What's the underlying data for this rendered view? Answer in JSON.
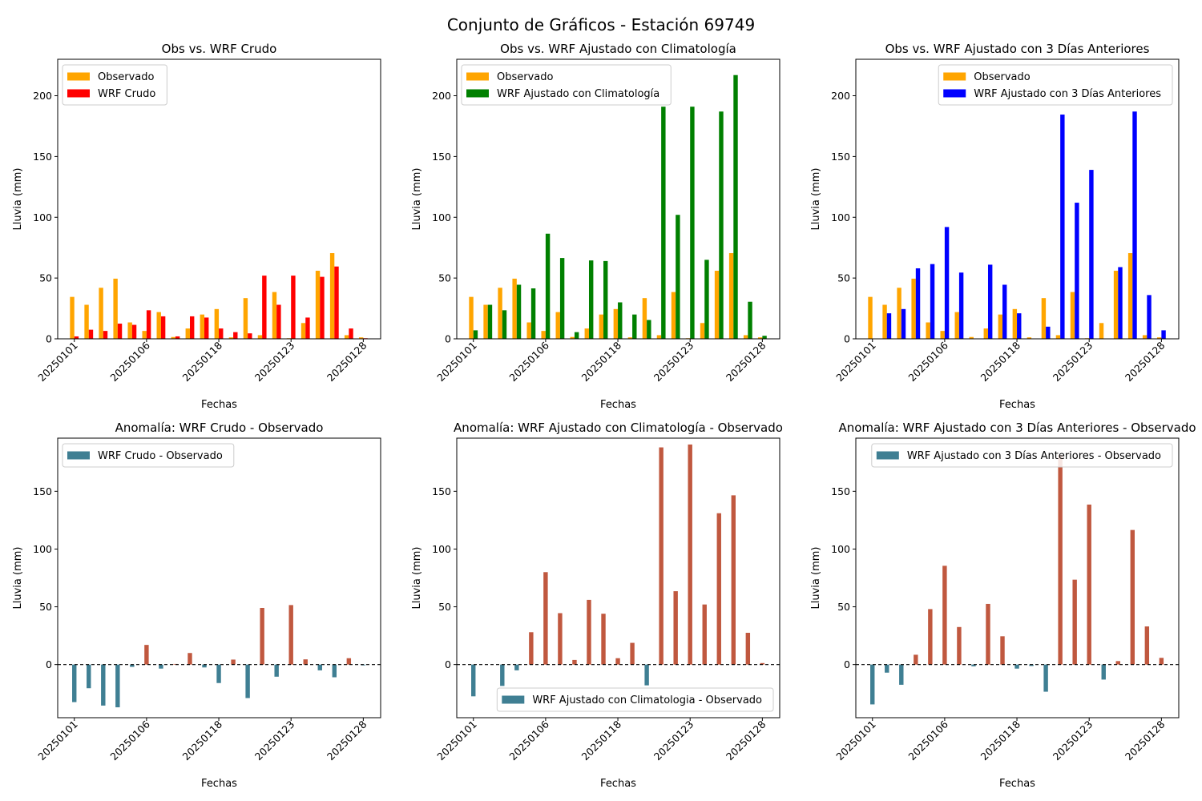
{
  "figure": {
    "title": "Conjunto de Gráficos - Estación 69749"
  },
  "colors": {
    "observed": "#FFA500",
    "wrf_raw": "#FF0000",
    "wrf_clim": "#008000",
    "wrf_3d": "#0000FF",
    "anom_negative": "#3F7F93",
    "anom_positive": "#C0583F"
  },
  "axis_labels": {
    "x_tick_labels": [
      "20250101",
      "20250106",
      "20250118",
      "20250123",
      "20250128"
    ]
  },
  "chart_data": [
    {
      "type": "bar",
      "title": "Obs vs. WRF Crudo",
      "xlabel": "Fechas",
      "ylabel": "Lluvia (mm)",
      "ylim": [
        0,
        230
      ],
      "yticks": [
        0,
        50,
        100,
        150,
        200
      ],
      "grid": false,
      "legend_position": "top-left",
      "series": [
        {
          "name": "Observado",
          "color": "#FFA500",
          "values": [
            34.5,
            28,
            42,
            49.5,
            13.5,
            6.5,
            22,
            1.5,
            8.5,
            20,
            24.5,
            1.2,
            33.5,
            3,
            38.5,
            0.5,
            13,
            56,
            70.5,
            3,
            1.2
          ]
        },
        {
          "name": "WRF Crudo",
          "color": "#FF0000",
          "values": [
            2,
            7.5,
            6.5,
            12.5,
            11.5,
            23.5,
            18.5,
            2,
            18.5,
            17.5,
            8.5,
            5.5,
            4.5,
            52,
            28,
            52,
            17.5,
            51,
            59.5,
            8.5,
            0.5
          ]
        }
      ]
    },
    {
      "type": "bar",
      "title": "Obs vs. WRF Ajustado con Climatología",
      "xlabel": "Fechas",
      "ylabel": "Lluvia (mm)",
      "ylim": [
        0,
        230
      ],
      "yticks": [
        0,
        50,
        100,
        150,
        200
      ],
      "grid": false,
      "legend_position": "top-left",
      "series": [
        {
          "name": "Observado",
          "color": "#FFA500",
          "values": [
            34.5,
            28,
            42,
            49.5,
            13.5,
            6.5,
            22,
            1.5,
            8.5,
            20,
            24.5,
            1.2,
            33.5,
            3,
            38.5,
            0.5,
            13,
            56,
            70.5,
            3,
            1.2
          ]
        },
        {
          "name": "WRF Ajustado con Climatología",
          "color": "#008000",
          "values": [
            7,
            28,
            23.5,
            44.5,
            41.5,
            86.5,
            66.5,
            5.5,
            64.5,
            64,
            30,
            20,
            15.5,
            191,
            102,
            191,
            65,
            187,
            217,
            30.5,
            2.5
          ]
        }
      ]
    },
    {
      "type": "bar",
      "title": "Obs vs. WRF Ajustado con 3 Días Anteriores",
      "xlabel": "Fechas",
      "ylabel": "Lluvia (mm)",
      "ylim": [
        0,
        230
      ],
      "yticks": [
        0,
        50,
        100,
        150,
        200
      ],
      "grid": false,
      "legend_position": "top-right",
      "series": [
        {
          "name": "Observado",
          "color": "#FFA500",
          "values": [
            34.5,
            28,
            42,
            49.5,
            13.5,
            6.5,
            22,
            1.5,
            8.5,
            20,
            24.5,
            1.2,
            33.5,
            3,
            38.5,
            0.5,
            13,
            56,
            70.5,
            3,
            1.2
          ]
        },
        {
          "name": "WRF Ajustado con 3 Días Anteriores",
          "color": "#0000FF",
          "values": [
            0,
            21,
            24.5,
            58,
            61.5,
            92,
            54.5,
            0,
            61,
            44.5,
            21,
            0,
            10,
            184.5,
            112,
            139,
            0,
            59,
            187,
            36,
            7
          ]
        }
      ]
    },
    {
      "type": "bar",
      "title": "Anomalía: WRF Crudo - Observado",
      "xlabel": "Fechas",
      "ylabel": "Lluvia (mm)",
      "ylim": [
        -46,
        196
      ],
      "yticks": [
        0,
        50,
        100,
        150
      ],
      "grid": false,
      "zero_line": "dashed",
      "legend_position": "top-left",
      "series": [
        {
          "name": "WRF Crudo - Observado",
          "values": [
            -32.5,
            -20.5,
            -35.5,
            -37,
            -2,
            17,
            -3.5,
            0.5,
            10,
            -2.5,
            -16,
            4.3,
            -29,
            49,
            -10.5,
            51.5,
            4.5,
            -5,
            -11,
            5.5,
            -0.7
          ]
        }
      ]
    },
    {
      "type": "bar",
      "title": "Anomalía: WRF Ajustado con Climatología - Observado",
      "xlabel": "Fechas",
      "ylabel": "Lluvia (mm)",
      "ylim": [
        -46,
        196
      ],
      "yticks": [
        0,
        50,
        100,
        150
      ],
      "grid": false,
      "zero_line": "dashed",
      "legend_position": "bottom-right",
      "series": [
        {
          "name": "WRF Ajustado con Climatologia - Observado",
          "values": [
            -27.5,
            0,
            -18.5,
            -5,
            28,
            80,
            44.5,
            4,
            56,
            44,
            5.5,
            18.8,
            -18,
            188,
            63.5,
            190.5,
            52,
            131,
            146.5,
            27.5,
            1.3
          ]
        }
      ]
    },
    {
      "type": "bar",
      "title": "Anomalía: WRF Ajustado con 3 Días Anteriores - Observado",
      "xlabel": "Fechas",
      "ylabel": "Lluvia (mm)",
      "ylim": [
        -46,
        196
      ],
      "yticks": [
        0,
        50,
        100,
        150
      ],
      "grid": false,
      "zero_line": "dashed",
      "legend_position": "top-right",
      "series": [
        {
          "name": "WRF Ajustado con 3 Días Anteriores - Observado",
          "values": [
            -34.5,
            -7,
            -17.5,
            8.5,
            48,
            85.5,
            32.5,
            -1.5,
            52.5,
            24.5,
            -3.5,
            -1.2,
            -23.5,
            181.5,
            73.5,
            138.5,
            -13,
            3,
            116.5,
            33,
            5.8
          ]
        }
      ]
    }
  ]
}
